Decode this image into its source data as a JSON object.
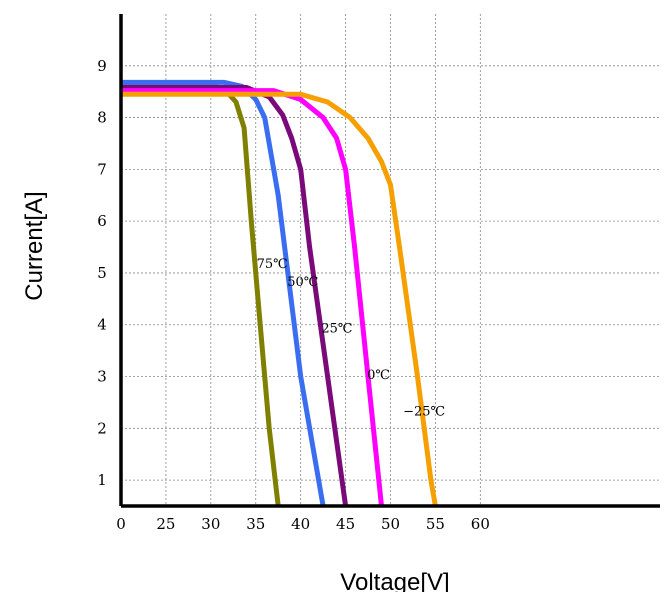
{
  "chart_data": {
    "type": "line",
    "xlabel": "Voltage[V]",
    "ylabel": "Current[A]",
    "xlim": [
      0,
      60
    ],
    "ylim": [
      0.5,
      10
    ],
    "grid": true,
    "x_ticks": [
      {
        "value": 0,
        "label": "0"
      },
      {
        "value": 5,
        "label": "25"
      },
      {
        "value": 10,
        "label": "30"
      },
      {
        "value": 15,
        "label": "35"
      },
      {
        "value": 20,
        "label": "40"
      },
      {
        "value": 25,
        "label": "45"
      },
      {
        "value": 30,
        "label": "50"
      },
      {
        "value": 35,
        "label": "55"
      },
      {
        "value": 40,
        "label": "60"
      }
    ],
    "y_ticks": [
      1,
      2,
      3,
      4,
      5,
      6,
      7,
      8,
      9
    ],
    "series": [
      {
        "name": "75℃",
        "color": "#7f7f00",
        "points": [
          [
            0,
            8.65
          ],
          [
            9.5,
            8.65
          ],
          [
            11.5,
            8.55
          ],
          [
            12.8,
            8.3
          ],
          [
            13.7,
            7.8
          ],
          [
            14.5,
            6.0
          ],
          [
            15.5,
            4.0
          ],
          [
            16.5,
            2.0
          ],
          [
            17.5,
            0.5
          ]
        ]
      },
      {
        "name": "50℃",
        "color": "#3a6df0",
        "points": [
          [
            0,
            8.68
          ],
          [
            11.5,
            8.68
          ],
          [
            13.5,
            8.6
          ],
          [
            15.0,
            8.35
          ],
          [
            16.0,
            8.0
          ],
          [
            17.5,
            6.5
          ],
          [
            20.0,
            3.0
          ],
          [
            22.5,
            0.5
          ]
        ]
      },
      {
        "name": "25℃",
        "color": "#7a0a7a",
        "points": [
          [
            0,
            8.58
          ],
          [
            14.0,
            8.58
          ],
          [
            16.5,
            8.4
          ],
          [
            18.0,
            8.05
          ],
          [
            19.0,
            7.6
          ],
          [
            20.0,
            7.0
          ],
          [
            21.0,
            5.5
          ],
          [
            23.0,
            3.0
          ],
          [
            25.0,
            0.5
          ]
        ]
      },
      {
        "name": "0℃",
        "color": "#ff00ff",
        "points": [
          [
            0,
            8.52
          ],
          [
            17.0,
            8.52
          ],
          [
            20.0,
            8.35
          ],
          [
            22.5,
            8.0
          ],
          [
            24.0,
            7.6
          ],
          [
            25.0,
            7.0
          ],
          [
            26.0,
            5.5
          ],
          [
            27.5,
            3.0
          ],
          [
            29.0,
            0.5
          ]
        ]
      },
      {
        "name": "−25℃",
        "color": "#f5a000",
        "points": [
          [
            0,
            8.45
          ],
          [
            20.0,
            8.45
          ],
          [
            23.0,
            8.3
          ],
          [
            25.5,
            8.0
          ],
          [
            27.5,
            7.6
          ],
          [
            29.0,
            7.15
          ],
          [
            30.0,
            6.7
          ],
          [
            31.0,
            5.5
          ],
          [
            33.0,
            3.0
          ],
          [
            34.5,
            1.0
          ],
          [
            35.0,
            0.5
          ]
        ]
      }
    ],
    "annotations": [
      {
        "text": "75℃",
        "series": 0,
        "x": 15.1,
        "y": 5.1
      },
      {
        "text": "50℃",
        "series": 1,
        "x": 18.5,
        "y": 4.75
      },
      {
        "text": "25℃",
        "series": 2,
        "x": 22.3,
        "y": 3.85
      },
      {
        "text": "0℃",
        "series": 3,
        "x": 27.4,
        "y": 2.95
      },
      {
        "text": "−25℃",
        "series": 4,
        "x": 31.4,
        "y": 2.25
      }
    ]
  }
}
